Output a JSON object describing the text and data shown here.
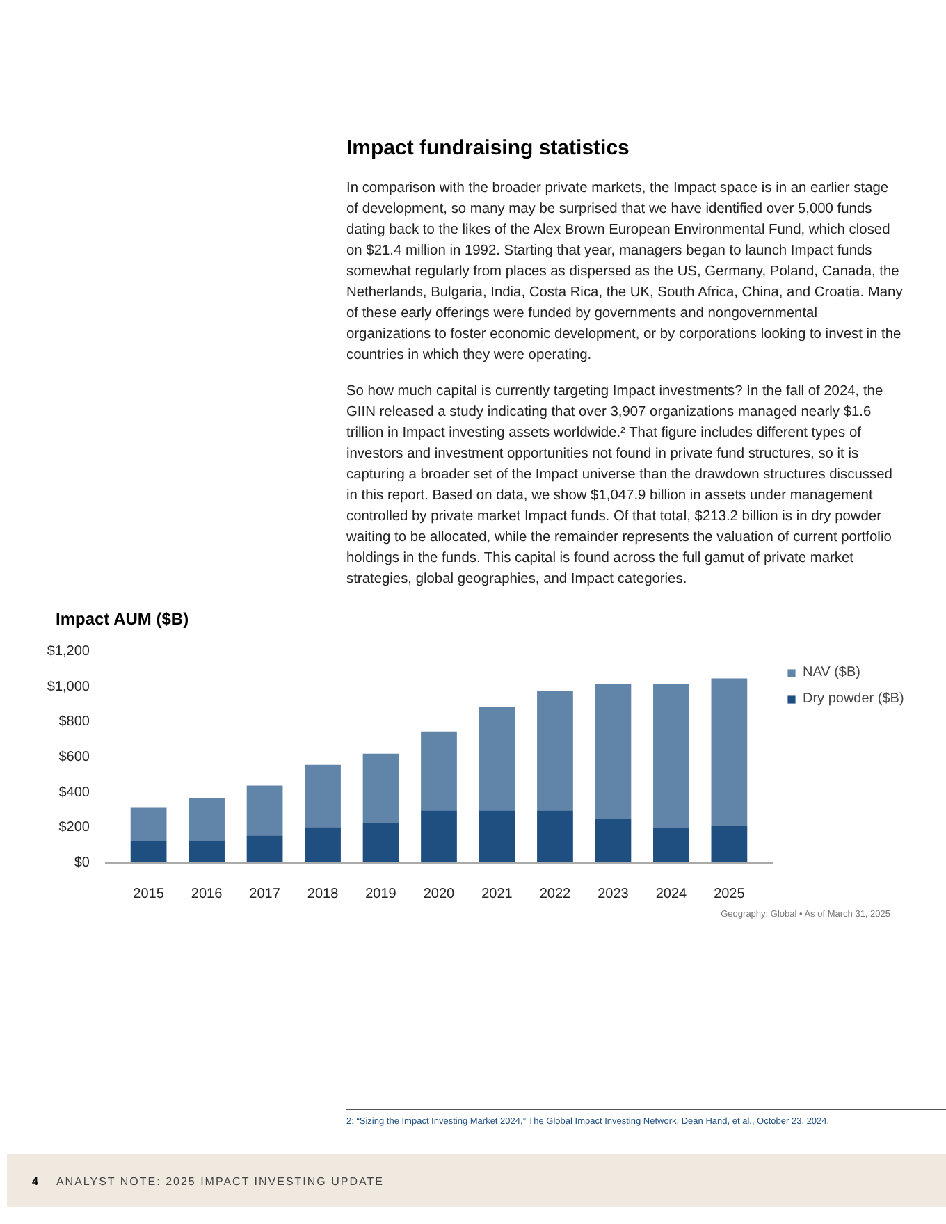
{
  "chart_data": {
    "type": "bar",
    "title": "Impact AUM ($B)",
    "stacked": true,
    "categories": [
      "2015",
      "2016",
      "2017",
      "2018",
      "2019",
      "2020",
      "2021",
      "2022",
      "2023",
      "2024",
      "2025"
    ],
    "series": [
      {
        "name": "Dry powder ($B)",
        "color": "#1f4e80",
        "values": [
          126,
          126,
          157,
          204,
          228,
          299,
          299,
          299,
          252,
          197,
          213
        ]
      },
      {
        "name": "NAV ($B)",
        "color": "#6085a9",
        "values": [
          188,
          243,
          283,
          354,
          393,
          448,
          589,
          676,
          762,
          817,
          835
        ]
      }
    ],
    "ylim": [
      0,
      1200
    ],
    "yticks": [
      {
        "value": 0,
        "label": "$0"
      },
      {
        "value": 200,
        "label": "$200"
      },
      {
        "value": 400,
        "label": "$400"
      },
      {
        "value": 600,
        "label": "$600"
      },
      {
        "value": 800,
        "label": "$800"
      },
      {
        "value": 1000,
        "label": "$1,000"
      },
      {
        "value": 1200,
        "label": "$1,200"
      }
    ],
    "grid": false,
    "legend": "right",
    "annotations": [
      "Impact fundraising statistics",
      "In comparison with the broader private markets, the Impact space is in an earlier stage of development, so many may be surprised that we have identified over 5,000 funds dating back to the likes of the Alex Brown European Environmental Fund, which closed on $21.4 million in 1992. Starting that year, managers began to launch Impact funds somewhat regularly from places as dispersed as the US, Germany, Poland, Canada, the Netherlands, Bulgaria, India, Costa Rica, the UK, South Africa, China, and Croatia. Many of these early offerings were funded by governments and nongovernmental organizations to foster economic development, or by corporations looking to invest in the countries in which they were operating.",
      "So how much capital is currently targeting Impact investments? In the fall of 2024, the GIIN released a study indicating that over 3,907 organizations managed nearly $1.6 trillion in Impact investing assets worldwide.² That figure includes different types of investors and investment opportunities not found in private fund structures, so it is capturing a broader set of the Impact universe than the drawdown structures discussed in this report. Based on data, we show $1,047.9 billion in assets under management controlled by private market Impact funds. Of that total, $213.2 billion is in dry powder waiting to be allocated, while the remainder represents the valuation of current portfolio holdings in the funds. This capital is found across the full gamut of private market strategies, global geographies, and Impact categories.",
      "Geography: Global • As of March 31, 2025",
      "2: “Sizing the Impact Investing Market 2024,” The Global Impact Investing Network, Dean Hand, et al., October 23, 2024.",
      "4",
      "ANALYST NOTE: 2025 IMPACT INVESTING UPDATE"
    ]
  }
}
